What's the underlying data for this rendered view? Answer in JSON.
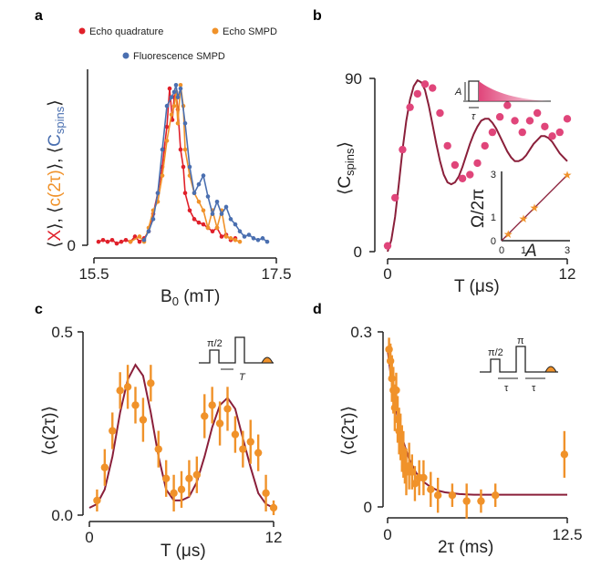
{
  "panels": {
    "a": {
      "label": "a"
    },
    "b": {
      "label": "b"
    },
    "c": {
      "label": "c"
    },
    "d": {
      "label": "d"
    }
  },
  "colors": {
    "red": "#e0202a",
    "orange": "#f0922a",
    "blue": "#4a6fb0",
    "pink": "#e0457a",
    "maroon": "#8a1f3a"
  },
  "chart_data": [
    {
      "panel": "a",
      "type": "line",
      "xlabel_main": "B",
      "xlabel_sub": "0",
      "xlabel_unit": " (mT)",
      "ylabel_parts": [
        "⟨",
        "X",
        "⟩, ⟨",
        "c(2τ)",
        "⟩, ⟨",
        "C",
        "spins",
        "⟩"
      ],
      "xlim": [
        15.5,
        17.5
      ],
      "ylim": [
        0,
        1
      ],
      "xticks": [
        "15.5",
        "17.5"
      ],
      "yticks": [
        "0"
      ],
      "legend": [
        "Echo  quadrature",
        "Echo  SMPD",
        "Fluorescence SMPD"
      ],
      "series": [
        {
          "name": "Echo quadrature",
          "color": "red",
          "x": [
            15.55,
            15.6,
            15.65,
            15.7,
            15.75,
            15.8,
            15.85,
            15.9,
            15.95,
            16.0,
            16.05,
            16.1,
            16.15,
            16.2,
            16.25,
            16.27,
            16.3,
            16.33,
            16.36,
            16.38,
            16.4,
            16.42,
            16.45,
            16.48,
            16.5,
            16.55,
            16.6,
            16.65,
            16.7,
            16.75,
            16.8,
            16.85,
            16.9,
            16.95,
            17.0,
            17.05
          ],
          "y": [
            0.02,
            0.03,
            0.02,
            0.03,
            0.01,
            0.02,
            0.03,
            0.02,
            0.05,
            0.02,
            0.04,
            0.08,
            0.18,
            0.3,
            0.45,
            0.55,
            0.68,
            0.9,
            0.72,
            0.85,
            0.88,
            0.78,
            0.55,
            0.45,
            0.3,
            0.2,
            0.15,
            0.13,
            0.12,
            0.1,
            0.08,
            0.1,
            0.05,
            0.06,
            0.03,
            0.04
          ]
        },
        {
          "name": "Echo SMPD",
          "color": "orange",
          "x": [
            15.9,
            16.0,
            16.05,
            16.1,
            16.15,
            16.2,
            16.25,
            16.3,
            16.35,
            16.38,
            16.4,
            16.42,
            16.45,
            16.48,
            16.5,
            16.55,
            16.6,
            16.65,
            16.7,
            16.75,
            16.8,
            16.85,
            16.9,
            16.95,
            17.0,
            17.05,
            17.1
          ],
          "y": [
            0.02,
            0.05,
            0.02,
            0.1,
            0.2,
            0.25,
            0.4,
            0.6,
            0.75,
            0.8,
            0.88,
            0.7,
            0.92,
            0.8,
            0.55,
            0.4,
            0.3,
            0.25,
            0.2,
            0.1,
            0.2,
            0.1,
            0.2,
            0.05,
            0.04,
            0.03,
            0.02
          ]
        },
        {
          "name": "Fluorescence SMPD",
          "color": "blue",
          "x": [
            16.05,
            16.1,
            16.15,
            16.2,
            16.25,
            16.3,
            16.35,
            16.38,
            16.4,
            16.42,
            16.45,
            16.5,
            16.55,
            16.6,
            16.65,
            16.7,
            16.75,
            16.8,
            16.85,
            16.9,
            16.95,
            17.0,
            17.05,
            17.1,
            17.15,
            17.2,
            17.25,
            17.3,
            17.35,
            17.4
          ],
          "y": [
            0.03,
            0.08,
            0.15,
            0.3,
            0.55,
            0.8,
            0.85,
            0.88,
            0.92,
            0.85,
            0.9,
            0.7,
            0.45,
            0.3,
            0.35,
            0.4,
            0.28,
            0.18,
            0.25,
            0.18,
            0.22,
            0.15,
            0.12,
            0.08,
            0.05,
            0.06,
            0.04,
            0.03,
            0.04,
            0.02
          ]
        }
      ]
    },
    {
      "panel": "b",
      "type": "scatter",
      "xlabel": "T (μs)",
      "ylabel_main": "⟨C",
      "ylabel_sub": "spins",
      "ylabel_end": "⟩",
      "xlim": [
        0,
        12
      ],
      "ylim": [
        0,
        90
      ],
      "xticks": [
        "0",
        "12"
      ],
      "yticks": [
        "0",
        "90"
      ],
      "points": {
        "x": [
          0,
          0.5,
          1,
          1.5,
          2,
          2.5,
          3,
          3.5,
          4,
          4.5,
          5,
          5.5,
          6,
          6.5,
          7,
          7.5,
          8,
          8.5,
          9,
          9.5,
          10,
          10.5,
          11,
          11.5,
          12
        ],
        "y": [
          3,
          28,
          53,
          75,
          82,
          87,
          85,
          72,
          55,
          45,
          38,
          40,
          46,
          55,
          62,
          70,
          76,
          68,
          62,
          68,
          72,
          65,
          60,
          62,
          69
        ]
      },
      "fit": {
        "x": [
          0,
          0.25,
          0.5,
          0.75,
          1,
          1.25,
          1.5,
          1.75,
          2,
          2.25,
          2.5,
          2.75,
          3,
          3.25,
          3.5,
          3.75,
          4,
          4.25,
          4.5,
          4.75,
          5,
          5.25,
          5.5,
          5.75,
          6,
          6.25,
          6.5,
          6.75,
          7,
          7.25,
          7.5,
          7.75,
          8,
          8.25,
          8.5,
          8.75,
          9,
          9.25,
          9.5,
          9.75,
          10,
          10.25,
          10.5,
          10.75,
          11,
          11.25,
          11.5,
          11.75,
          12
        ],
        "y": [
          0,
          6,
          18,
          35,
          53,
          68,
          79,
          86,
          89,
          88,
          84,
          76,
          66,
          56,
          47,
          40,
          36,
          35,
          36,
          39,
          44,
          50,
          56,
          61,
          65,
          68,
          69,
          69,
          67,
          64,
          60,
          56,
          52,
          49,
          47,
          47,
          48,
          50,
          53,
          56,
          58,
          60,
          60,
          59,
          57,
          54,
          51,
          49,
          47
        ]
      },
      "inset_pulse": {
        "amplitude_label": "A",
        "duration_label": "τ"
      },
      "inset_linear": {
        "xlabel": "A",
        "ylabel": "Ω/2π",
        "xlim": [
          0,
          3
        ],
        "ylim": [
          0,
          3
        ],
        "xticks": [
          "0",
          "1",
          "3"
        ],
        "yticks": [
          "0",
          "1",
          "3"
        ],
        "points": {
          "x": [
            0.3,
            1.0,
            1.5,
            3.0
          ],
          "y": [
            0.3,
            1.0,
            1.5,
            3.0
          ]
        }
      }
    },
    {
      "panel": "c",
      "type": "scatter",
      "xlabel": "T (μs)",
      "ylabel": "⟨c(2τ)⟩",
      "xlim": [
        0,
        12
      ],
      "ylim": [
        0,
        0.5
      ],
      "xticks": [
        "0",
        "12"
      ],
      "yticks": [
        "0.0",
        "0.5"
      ],
      "points": {
        "x": [
          0.5,
          1,
          1.5,
          2,
          2.5,
          3,
          3.5,
          4,
          4.5,
          5,
          5.5,
          6,
          6.5,
          7,
          7.5,
          8,
          8.5,
          9,
          9.5,
          10,
          10.5,
          11,
          11.5,
          12
        ],
        "y": [
          0.04,
          0.13,
          0.23,
          0.34,
          0.35,
          0.3,
          0.26,
          0.36,
          0.18,
          0.1,
          0.06,
          0.07,
          0.1,
          0.11,
          0.27,
          0.3,
          0.25,
          0.29,
          0.22,
          0.18,
          0.2,
          0.17,
          0.06,
          0.02
        ],
        "err": [
          0.03,
          0.05,
          0.05,
          0.05,
          0.06,
          0.05,
          0.06,
          0.05,
          0.05,
          0.05,
          0.05,
          0.05,
          0.05,
          0.05,
          0.06,
          0.05,
          0.06,
          0.06,
          0.05,
          0.05,
          0.06,
          0.05,
          0.05,
          0.02
        ]
      },
      "fit": {
        "x": [
          0,
          0.5,
          1,
          1.5,
          2,
          2.5,
          3,
          3.5,
          4,
          4.5,
          5,
          5.5,
          6,
          6.5,
          7,
          7.5,
          8,
          8.5,
          9,
          9.5,
          10,
          10.5,
          11,
          11.5,
          12
        ],
        "y": [
          0.02,
          0.03,
          0.07,
          0.16,
          0.28,
          0.37,
          0.41,
          0.38,
          0.28,
          0.16,
          0.07,
          0.04,
          0.04,
          0.05,
          0.09,
          0.16,
          0.24,
          0.3,
          0.32,
          0.29,
          0.21,
          0.13,
          0.06,
          0.03,
          0.02
        ]
      },
      "inset_pulse": {
        "label1": "π/2",
        "label2": "T"
      }
    },
    {
      "panel": "d",
      "type": "scatter",
      "xlabel": "2τ (ms)",
      "ylabel": "⟨c(2τ)⟩",
      "xlim": [
        0,
        12.5
      ],
      "ylim": [
        0,
        0.3
      ],
      "xticks": [
        "0",
        "12.5"
      ],
      "yticks": [
        "0",
        "0.3"
      ],
      "points": {
        "x": [
          0.1,
          0.2,
          0.3,
          0.4,
          0.5,
          0.6,
          0.7,
          0.8,
          0.9,
          1.0,
          1.1,
          1.2,
          1.3,
          1.5,
          1.7,
          1.9,
          2.2,
          2.5,
          3.0,
          3.5,
          4.5,
          5.5,
          6.5,
          7.5,
          12.3
        ],
        "y": [
          0.27,
          0.25,
          0.22,
          0.2,
          0.17,
          0.2,
          0.15,
          0.13,
          0.12,
          0.1,
          0.09,
          0.07,
          0.06,
          0.07,
          0.06,
          0.04,
          0.05,
          0.05,
          0.03,
          0.02,
          0.02,
          0.01,
          0.01,
          0.02,
          0.09
        ],
        "err": [
          0.02,
          0.03,
          0.04,
          0.04,
          0.04,
          0.03,
          0.04,
          0.04,
          0.04,
          0.04,
          0.04,
          0.03,
          0.04,
          0.04,
          0.03,
          0.03,
          0.03,
          0.03,
          0.03,
          0.03,
          0.02,
          0.03,
          0.02,
          0.02,
          0.04
        ]
      },
      "fit": {
        "x": [
          0,
          0.25,
          0.5,
          0.75,
          1,
          1.25,
          1.5,
          2,
          2.5,
          3,
          3.5,
          4,
          5,
          6,
          7,
          8,
          9,
          10,
          11,
          12.5
        ],
        "y": [
          0.27,
          0.22,
          0.18,
          0.145,
          0.12,
          0.1,
          0.082,
          0.058,
          0.043,
          0.034,
          0.028,
          0.025,
          0.022,
          0.021,
          0.021,
          0.021,
          0.021,
          0.021,
          0.021,
          0.021
        ]
      },
      "inset_pulse": {
        "label1": "π/2",
        "label2": "π",
        "tau": "τ"
      }
    }
  ]
}
